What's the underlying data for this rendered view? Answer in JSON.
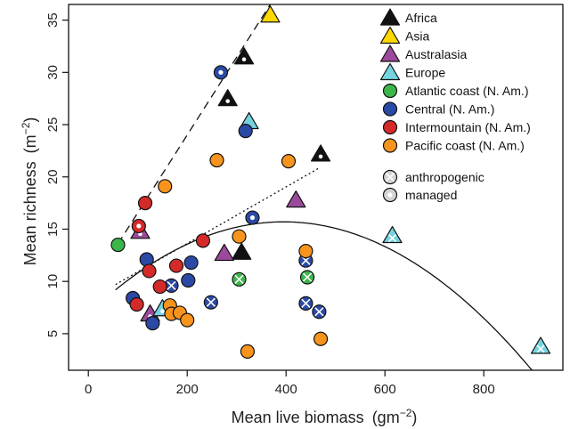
{
  "chart_data": {
    "type": "scatter",
    "xlabel": "Mean live biomass",
    "xlabel_unit": "(gm",
    "xlabel_exp": "−2",
    "xlabel_close": ")",
    "ylabel": "Mean richness",
    "ylabel_unit": "(m",
    "ylabel_exp": "−2",
    "ylabel_close": ")",
    "xlim": [
      -40,
      960
    ],
    "ylim": [
      1.5,
      36.5
    ],
    "x_ticks": [
      0,
      200,
      400,
      600,
      800
    ],
    "y_ticks": [
      5,
      10,
      15,
      20,
      25,
      30,
      35
    ],
    "grid": false,
    "legend_position": "top-right",
    "groups": [
      {
        "name": "Africa",
        "shape": "triangle",
        "color": "#111111"
      },
      {
        "name": "Asia",
        "shape": "triangle",
        "color": "#ffd800"
      },
      {
        "name": "Australasia",
        "shape": "triangle",
        "color": "#9b4a9b"
      },
      {
        "name": "Europe",
        "shape": "triangle",
        "color": "#74d3df"
      },
      {
        "name": "Atlantic coast (N. Am.)",
        "shape": "circle",
        "color": "#3cb54a"
      },
      {
        "name": "Central (N. Am.)",
        "shape": "circle",
        "color": "#2b4aa6"
      },
      {
        "name": "Intermountain (N. Am.)",
        "shape": "circle",
        "color": "#d42a2a"
      },
      {
        "name": "Pacific coast (N. Am.)",
        "shape": "circle",
        "color": "#f7941d"
      }
    ],
    "marker_legend": [
      {
        "name": "anthropogenic",
        "marker": "cross"
      },
      {
        "name": "managed",
        "marker": "dot"
      }
    ],
    "points": [
      {
        "group": "Africa",
        "x": 315,
        "y": 31.5,
        "marker": "dot"
      },
      {
        "group": "Africa",
        "x": 282,
        "y": 27.5,
        "marker": "dot"
      },
      {
        "group": "Africa",
        "x": 470,
        "y": 22.2,
        "marker": "dot"
      },
      {
        "group": "Africa",
        "x": 310,
        "y": 12.8,
        "marker": "none"
      },
      {
        "group": "Asia",
        "x": 368,
        "y": 35.5,
        "marker": "none"
      },
      {
        "group": "Australasia",
        "x": 105,
        "y": 14.8,
        "marker": "dot"
      },
      {
        "group": "Australasia",
        "x": 420,
        "y": 17.8,
        "marker": "none"
      },
      {
        "group": "Australasia",
        "x": 275,
        "y": 12.7,
        "marker": "none"
      },
      {
        "group": "Australasia",
        "x": 125,
        "y": 6.9,
        "marker": "dot"
      },
      {
        "group": "Europe",
        "x": 325,
        "y": 25.3,
        "marker": "none"
      },
      {
        "group": "Europe",
        "x": 615,
        "y": 14.4,
        "marker": "cross"
      },
      {
        "group": "Europe",
        "x": 915,
        "y": 3.8,
        "marker": "cross"
      },
      {
        "group": "Europe",
        "x": 150,
        "y": 7.4,
        "marker": "dot"
      },
      {
        "group": "Atlantic coast (N. Am.)",
        "x": 60,
        "y": 13.5,
        "marker": "none"
      },
      {
        "group": "Atlantic coast (N. Am.)",
        "x": 305,
        "y": 10.2,
        "marker": "cross"
      },
      {
        "group": "Atlantic coast (N. Am.)",
        "x": 443,
        "y": 10.4,
        "marker": "cross"
      },
      {
        "group": "Central (N. Am.)",
        "x": 268,
        "y": 30.0,
        "marker": "dot"
      },
      {
        "group": "Central (N. Am.)",
        "x": 318,
        "y": 24.4,
        "marker": "none"
      },
      {
        "group": "Central (N. Am.)",
        "x": 332,
        "y": 16.1,
        "marker": "dot"
      },
      {
        "group": "Central (N. Am.)",
        "x": 118,
        "y": 12.1,
        "marker": "none"
      },
      {
        "group": "Central (N. Am.)",
        "x": 208,
        "y": 11.8,
        "marker": "none"
      },
      {
        "group": "Central (N. Am.)",
        "x": 440,
        "y": 12.0,
        "marker": "cross"
      },
      {
        "group": "Central (N. Am.)",
        "x": 202,
        "y": 10.1,
        "marker": "none"
      },
      {
        "group": "Central (N. Am.)",
        "x": 168,
        "y": 9.6,
        "marker": "cross"
      },
      {
        "group": "Central (N. Am.)",
        "x": 90,
        "y": 8.4,
        "marker": "none"
      },
      {
        "group": "Central (N. Am.)",
        "x": 248,
        "y": 8.0,
        "marker": "cross"
      },
      {
        "group": "Central (N. Am.)",
        "x": 440,
        "y": 7.9,
        "marker": "cross"
      },
      {
        "group": "Central (N. Am.)",
        "x": 467,
        "y": 7.1,
        "marker": "cross"
      },
      {
        "group": "Central (N. Am.)",
        "x": 130,
        "y": 6.0,
        "marker": "none"
      },
      {
        "group": "Intermountain (N. Am.)",
        "x": 115,
        "y": 17.5,
        "marker": "none"
      },
      {
        "group": "Intermountain (N. Am.)",
        "x": 102,
        "y": 15.3,
        "marker": "dot"
      },
      {
        "group": "Intermountain (N. Am.)",
        "x": 232,
        "y": 13.9,
        "marker": "none"
      },
      {
        "group": "Intermountain (N. Am.)",
        "x": 178,
        "y": 11.5,
        "marker": "none"
      },
      {
        "group": "Intermountain (N. Am.)",
        "x": 123,
        "y": 11.0,
        "marker": "none"
      },
      {
        "group": "Intermountain (N. Am.)",
        "x": 145,
        "y": 9.5,
        "marker": "none"
      },
      {
        "group": "Intermountain (N. Am.)",
        "x": 98,
        "y": 7.8,
        "marker": "none"
      },
      {
        "group": "Pacific coast (N. Am.)",
        "x": 155,
        "y": 19.1,
        "marker": "none"
      },
      {
        "group": "Pacific coast (N. Am.)",
        "x": 260,
        "y": 21.6,
        "marker": "none"
      },
      {
        "group": "Pacific coast (N. Am.)",
        "x": 405,
        "y": 21.5,
        "marker": "none"
      },
      {
        "group": "Pacific coast (N. Am.)",
        "x": 305,
        "y": 14.3,
        "marker": "none"
      },
      {
        "group": "Pacific coast (N. Am.)",
        "x": 440,
        "y": 12.9,
        "marker": "none"
      },
      {
        "group": "Pacific coast (N. Am.)",
        "x": 165,
        "y": 7.7,
        "marker": "none"
      },
      {
        "group": "Pacific coast (N. Am.)",
        "x": 168,
        "y": 6.9,
        "marker": "none"
      },
      {
        "group": "Pacific coast (N. Am.)",
        "x": 185,
        "y": 7.0,
        "marker": "none"
      },
      {
        "group": "Pacific coast (N. Am.)",
        "x": 200,
        "y": 6.3,
        "marker": "none"
      },
      {
        "group": "Pacific coast (N. Am.)",
        "x": 470,
        "y": 4.5,
        "marker": "none"
      },
      {
        "group": "Pacific coast (N. Am.)",
        "x": 322,
        "y": 3.3,
        "marker": "none"
      }
    ],
    "lines": [
      {
        "style": "dashed",
        "points": [
          [
            60,
            13.6
          ],
          [
            368,
            36.5
          ]
        ]
      },
      {
        "style": "dotted",
        "points": [
          [
            55,
            9.7
          ],
          [
            465,
            20.8
          ]
        ]
      },
      {
        "style": "solid",
        "curve": "quadratic",
        "x_range": [
          55,
          905
        ],
        "peak": [
          395,
          15.7
        ],
        "endpoint": [
          55,
          9.2
        ]
      }
    ]
  }
}
